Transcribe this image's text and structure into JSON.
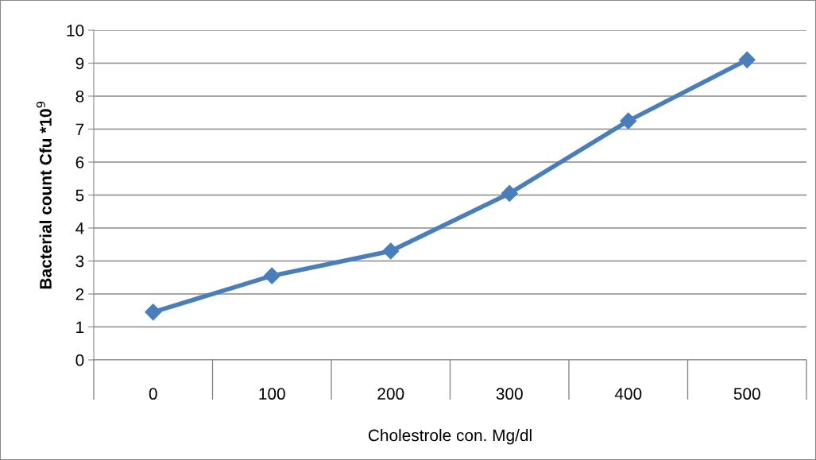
{
  "chart_data": {
    "type": "line",
    "xlabel": "Cholestrole con. Mg/dl",
    "ylabel": "Bacterial count Cfu *10$^{9}$",
    "categories": [
      "0",
      "100",
      "200",
      "300",
      "400",
      "500"
    ],
    "series": [
      {
        "color": "#4a7ebb",
        "values": [
          1.45,
          2.55,
          3.3,
          5.05,
          7.25,
          9.1
        ]
      }
    ],
    "ylim": [
      0,
      10
    ],
    "yticks": [
      0,
      1,
      2,
      3,
      4,
      5,
      6,
      7,
      8,
      9,
      10
    ],
    "grid": "y",
    "marker": "diamond",
    "line_style": "solid"
  }
}
